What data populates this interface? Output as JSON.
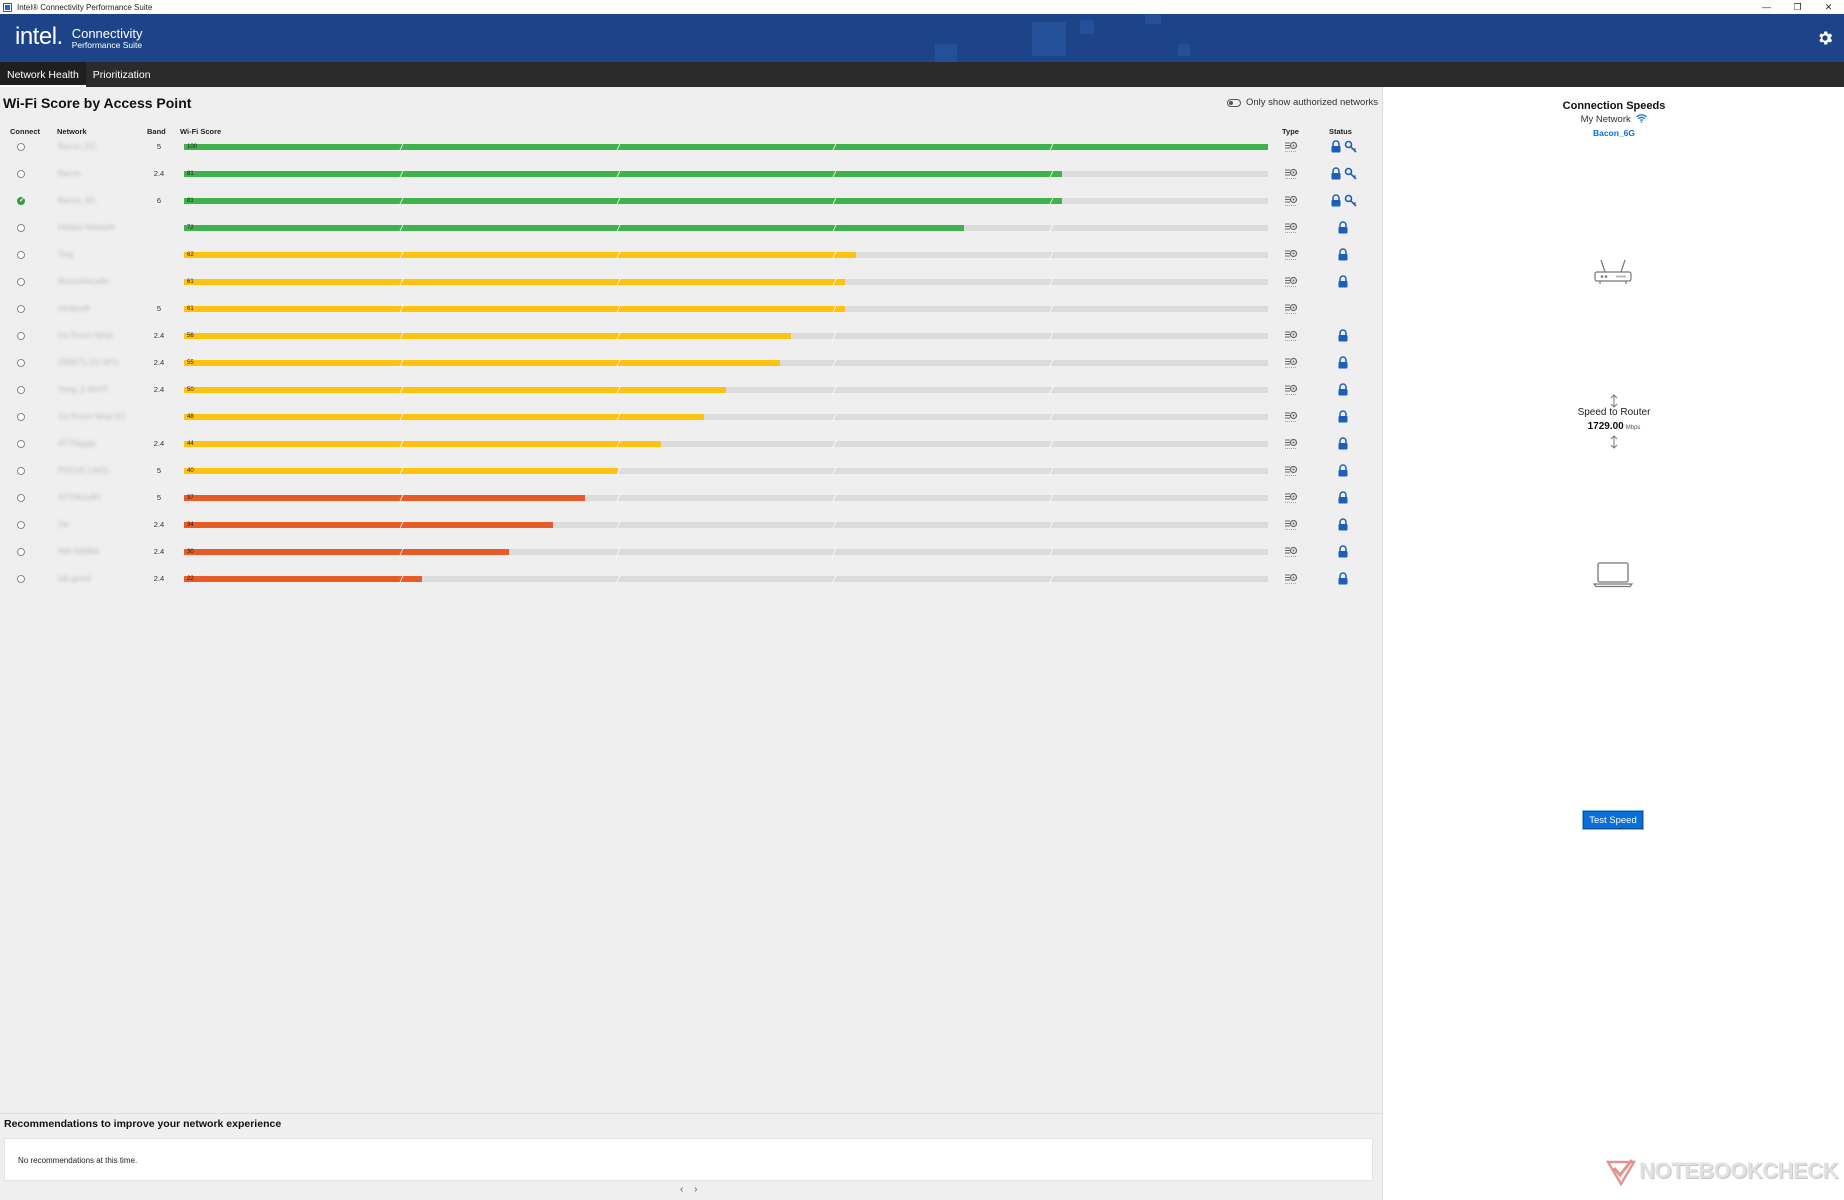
{
  "window": {
    "title": "Intel® Connectivity Performance Suite",
    "minimize": "—",
    "maximize": "❐",
    "close": "✕"
  },
  "header": {
    "logo_mark": "intel.",
    "logo_line1": "Connectivity",
    "logo_line2": "Performance Suite"
  },
  "nav": {
    "tabs": [
      {
        "label": "Network Health",
        "active": true
      },
      {
        "label": "Prioritization",
        "active": false
      }
    ]
  },
  "wifi_score": {
    "title": "Wi-Fi Score by Access Point",
    "toggle_label": "Only show authorized networks",
    "columns": {
      "connect": "Connect",
      "network": "Network",
      "band": "Band",
      "score": "Wi-Fi Score",
      "type": "Type",
      "status": "Status"
    },
    "rows": [
      {
        "network": "Bacon_5G",
        "band": "5",
        "score": 100,
        "connected": false,
        "color": "#3fb24c",
        "secured": true,
        "key": true
      },
      {
        "network": "Bacon",
        "band": "2.4",
        "score": 81,
        "connected": false,
        "color": "#3fb24c",
        "secured": true,
        "key": true
      },
      {
        "network": "Bacon_6G",
        "band": "6",
        "score": 81,
        "connected": true,
        "color": "#3fb24c",
        "secured": true,
        "key": true
      },
      {
        "network": "Hidden Network",
        "band": "",
        "score": 72,
        "connected": false,
        "color": "#3fb24c",
        "secured": true,
        "key": false
      },
      {
        "network": "Ting",
        "band": "",
        "score": 62,
        "connected": false,
        "color": "#ffc20e",
        "secured": true,
        "key": false
      },
      {
        "network": "MovesNeuelle",
        "band": "",
        "score": 61,
        "connected": false,
        "color": "#ffc20e",
        "secured": true,
        "key": false
      },
      {
        "network": "xfinitywifi",
        "band": "5",
        "score": 61,
        "connected": false,
        "color": "#ffc20e",
        "secured": false,
        "key": false
      },
      {
        "network": "Go Room Ninja",
        "band": "2.4",
        "score": 56,
        "connected": false,
        "color": "#ffc20e",
        "secured": true,
        "key": false
      },
      {
        "network": "ORBI71-2G-WYL",
        "band": "2.4",
        "score": 55,
        "connected": false,
        "color": "#ffc20e",
        "secured": true,
        "key": false
      },
      {
        "network": "Yang_2.4GHT",
        "band": "2.4",
        "score": 50,
        "connected": false,
        "color": "#ffc20e",
        "secured": true,
        "key": false
      },
      {
        "network": "Go Room Ninja 5G",
        "band": "",
        "score": 48,
        "connected": false,
        "color": "#ffc20e",
        "secured": true,
        "key": false
      },
      {
        "network": "ATTNqgqx",
        "band": "2.4",
        "score": 44,
        "connected": false,
        "color": "#ffc20e",
        "secured": true,
        "key": false
      },
      {
        "network": "PHOVE-LWDL",
        "band": "5",
        "score": 40,
        "connected": false,
        "color": "#ffc20e",
        "secured": true,
        "key": false
      },
      {
        "network": "ATTNkzy6H",
        "band": "5",
        "score": 37,
        "connected": false,
        "color": "#e85a26",
        "secured": true,
        "key": false
      },
      {
        "network": "2ki",
        "band": "2.4",
        "score": 34,
        "connected": false,
        "color": "#e85a26",
        "secured": true,
        "key": false
      },
      {
        "network": "NW-WBBM",
        "band": "2.4",
        "score": 30,
        "connected": false,
        "color": "#e85a26",
        "secured": true,
        "key": false
      },
      {
        "network": "lab-guest",
        "band": "2.4",
        "score": 22,
        "connected": false,
        "color": "#e85a26",
        "secured": true,
        "key": false
      }
    ]
  },
  "recommendations": {
    "title": "Recommendations to improve your network experience",
    "text": "No recommendations at this time.",
    "pager": "‹ ›"
  },
  "connection_speeds": {
    "title": "Connection Speeds",
    "my_network_label": "My Network",
    "ssid": "Bacon_6G",
    "speed_label": "Speed to Router",
    "speed_value": "1729.00",
    "speed_unit": "Mbps",
    "test_button": "Test Speed"
  },
  "watermark": "NOTEBOOKCHECK"
}
